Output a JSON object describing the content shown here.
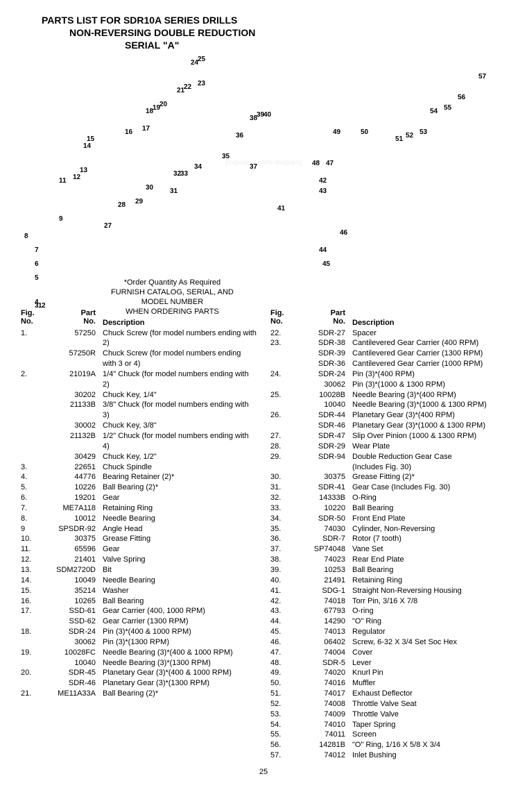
{
  "title_line1": "PARTS LIST FOR SDR10A SERIES DRILLS",
  "title_line2": "NON-REVERSING DOUBLE REDUCTION",
  "title_line3": "SERIAL \"A\"",
  "order_note_l1": "*Order Quantity As Required",
  "order_note_l2": "FURNISH CATALOG, SERIAL, AND",
  "order_note_l3": "MODEL NUMBER",
  "order_note_l4": "WHEN ORDERING PARTS",
  "header_fig": "Fig.",
  "header_no": "No.",
  "header_part": "Part",
  "header_desc": "Description",
  "page_number": "25",
  "callouts": [
    "1",
    "2",
    "3",
    "4",
    "5",
    "6",
    "7",
    "8",
    "9",
    "11",
    "12",
    "13",
    "14",
    "15",
    "16",
    "17",
    "18",
    "19",
    "20",
    "21",
    "22",
    "23",
    "24",
    "25",
    "27",
    "28",
    "29",
    "30",
    "31",
    "32",
    "33",
    "34",
    "35",
    "36",
    "37",
    "38",
    "39",
    "40",
    "41",
    "42",
    "43",
    "44",
    "45",
    "46",
    "47",
    "48",
    "49",
    "50",
    "51",
    "52",
    "53",
    "54",
    "55",
    "56",
    "57"
  ],
  "left_rows": [
    {
      "fig": "1.",
      "part": "57250",
      "desc": "Chuck Screw (for model numbers ending with 2)"
    },
    {
      "fig": "",
      "part": "57250R",
      "desc": "Chuck Screw (for model numbers ending"
    },
    {
      "fig": "",
      "part": "",
      "desc": "with 3 or 4)"
    },
    {
      "fig": "2.",
      "part": "21019A",
      "desc": "1/4\" Chuck (for model numbers ending with 2)"
    },
    {
      "fig": "",
      "part": "30202",
      "desc": "Chuck Key, 1/4\""
    },
    {
      "fig": "",
      "part": "21133B",
      "desc": "3/8\" Chuck (for model numbers ending with 3)"
    },
    {
      "fig": "",
      "part": "30002",
      "desc": "Chuck Key, 3/8\""
    },
    {
      "fig": "",
      "part": "21132B",
      "desc": "1/2\" Chuck (for model numbers ending with 4)"
    },
    {
      "fig": "",
      "part": "30429",
      "desc": "Chuck Key, 1/2\""
    },
    {
      "fig": "3.",
      "part": "22651",
      "desc": "Chuck Spindle"
    },
    {
      "fig": "4.",
      "part": "44776",
      "desc": "Bearing Retainer (2)*"
    },
    {
      "fig": "5.",
      "part": "10226",
      "desc": "Ball Bearing (2)*"
    },
    {
      "fig": "6.",
      "part": "19201",
      "desc": "Gear"
    },
    {
      "fig": "7.",
      "part": "ME7A118",
      "desc": "Retaining Ring"
    },
    {
      "fig": "8.",
      "part": "10012",
      "desc": "Needle Bearing"
    },
    {
      "fig": "9",
      "part": "SPSDR-92",
      "desc": "Angle Head"
    },
    {
      "fig": "10.",
      "part": "30375",
      "desc": "Grease Fitting"
    },
    {
      "fig": "11.",
      "part": "65596",
      "desc": "Gear"
    },
    {
      "fig": "12.",
      "part": "21401",
      "desc": "Valve Spring"
    },
    {
      "fig": "13.",
      "part": "SDM2720D",
      "desc": "Bit"
    },
    {
      "fig": "14.",
      "part": "10049",
      "desc": "Needle Bearing"
    },
    {
      "fig": "15.",
      "part": "35214",
      "desc": "Washer"
    },
    {
      "fig": "16.",
      "part": "10265",
      "desc": "Ball Bearing"
    },
    {
      "fig": "17.",
      "part": "SSD-61",
      "desc": "Gear Carrier (400, 1000 RPM)"
    },
    {
      "fig": "",
      "part": "SSD-62",
      "desc": "Gear Carrier (1300 RPM)"
    },
    {
      "fig": "18.",
      "part": "SDR-24",
      "desc": "Pin (3)*(400 & 1000 RPM)"
    },
    {
      "fig": "",
      "part": "30062",
      "desc": "Pin (3)*(1300 RPM)"
    },
    {
      "fig": "19.",
      "part": "10028FC",
      "desc": "Needle Bearing (3)*(400 & 1000 RPM)"
    },
    {
      "fig": "",
      "part": "10040",
      "desc": "Needle Bearing (3)*(1300 RPM)"
    },
    {
      "fig": "20.",
      "part": "SDR-45",
      "desc": "Planetary Gear (3)*(400 & 1000 RPM)"
    },
    {
      "fig": "",
      "part": "SDR-46",
      "desc": "Planetary Gear (3)*(1300 RPM)"
    },
    {
      "fig": "21.",
      "part": "ME11A33A",
      "desc": "Ball Bearing (2)*"
    }
  ],
  "right_rows": [
    {
      "fig": "22.",
      "part": "SDR-27",
      "desc": "Spacer"
    },
    {
      "fig": "23.",
      "part": "SDR-38",
      "desc": "Cantilevered Gear Carrier (400 RPM)"
    },
    {
      "fig": "",
      "part": "SDR-39",
      "desc": "Cantilevered Gear Carrier (1300 RPM)"
    },
    {
      "fig": "",
      "part": "SDR-36",
      "desc": "Cantilevered Gear Carrier (1000 RPM)"
    },
    {
      "fig": "24.",
      "part": "SDR-24",
      "desc": "Pin (3)*(400 RPM)"
    },
    {
      "fig": "",
      "part": "30062",
      "desc": "Pin (3)*(1000 & 1300 RPM)"
    },
    {
      "fig": "25.",
      "part": "10028B",
      "desc": "Needle Bearing (3)*(400 RPM)"
    },
    {
      "fig": "",
      "part": "10040",
      "desc": "Needle Bearing (3)*(1000 & 1300 RPM)"
    },
    {
      "fig": "26.",
      "part": "SDR-44",
      "desc": "Planetary Gear (3)*(400 RPM)"
    },
    {
      "fig": "",
      "part": "SDR-46",
      "desc": "Planetary Gear (3)*(1000 & 1300 RPM)"
    },
    {
      "fig": "27.",
      "part": "SDR-47",
      "desc": "Slip Over Pinion (1000 & 1300 RPM)"
    },
    {
      "fig": "28.",
      "part": "SDR-29",
      "desc": "Wear Plate"
    },
    {
      "fig": "29.",
      "part": "SDR-94",
      "desc": "Double Reduction Gear Case"
    },
    {
      "fig": "",
      "part": "",
      "desc": "(Includes Fig. 30)"
    },
    {
      "fig": "30.",
      "part": "30375",
      "desc": "Grease Fitting (2)*"
    },
    {
      "fig": "31.",
      "part": "SDR-41",
      "desc": "Gear Case (Includes Fig. 30)"
    },
    {
      "fig": "32.",
      "part": "14333B",
      "desc": "O-Ring"
    },
    {
      "fig": "33.",
      "part": "10220",
      "desc": "Ball Bearing"
    },
    {
      "fig": "34.",
      "part": "SDR-50",
      "desc": "Front End Plate"
    },
    {
      "fig": "35.",
      "part": "74030",
      "desc": "Cylinder, Non-Reversing"
    },
    {
      "fig": "36.",
      "part": "SDR-7",
      "desc": "Rotor (7 tooth)"
    },
    {
      "fig": "37.",
      "part": "SP74048",
      "desc": "Vane Set"
    },
    {
      "fig": "38.",
      "part": "74023",
      "desc": "Rear End Plate"
    },
    {
      "fig": "39.",
      "part": "10253",
      "desc": "Ball Bearing"
    },
    {
      "fig": "40.",
      "part": "21491",
      "desc": "Retaining Ring"
    },
    {
      "fig": "41.",
      "part": "SDG-1",
      "desc": "Straight Non-Reversing Housing"
    },
    {
      "fig": "42.",
      "part": "74018",
      "desc": "Torr Pin, 3/16 X 7/8"
    },
    {
      "fig": "43.",
      "part": "67793",
      "desc": "O-ring"
    },
    {
      "fig": "44.",
      "part": "14290",
      "desc": "\"O\" Ring"
    },
    {
      "fig": "45.",
      "part": "74013",
      "desc": "Regulator"
    },
    {
      "fig": "46.",
      "part": "06402",
      "desc": "Screw, 6-32 X 3/4 Set Soc Hex"
    },
    {
      "fig": "47.",
      "part": "74004",
      "desc": "Cover"
    },
    {
      "fig": "48.",
      "part": "SDR-5",
      "desc": "Lever"
    },
    {
      "fig": "49.",
      "part": "74020",
      "desc": "Knurl Pin"
    },
    {
      "fig": "50.",
      "part": "74016",
      "desc": "Muffler"
    },
    {
      "fig": "51.",
      "part": "74017",
      "desc": "Exhaust Deflector"
    },
    {
      "fig": "52.",
      "part": "74008",
      "desc": "Throttle Valve Seat"
    },
    {
      "fig": "53.",
      "part": "74009",
      "desc": "Throttle Valve"
    },
    {
      "fig": "54.",
      "part": "74010",
      "desc": "Taper Spring"
    },
    {
      "fig": "55.",
      "part": "74011",
      "desc": "Screen"
    },
    {
      "fig": "56.",
      "part": "14281B",
      "desc": "\"O\" Ring, 1/16 X 5/8 X 3/4"
    },
    {
      "fig": "57.",
      "part": "74012",
      "desc": "Inlet Bushing"
    }
  ]
}
